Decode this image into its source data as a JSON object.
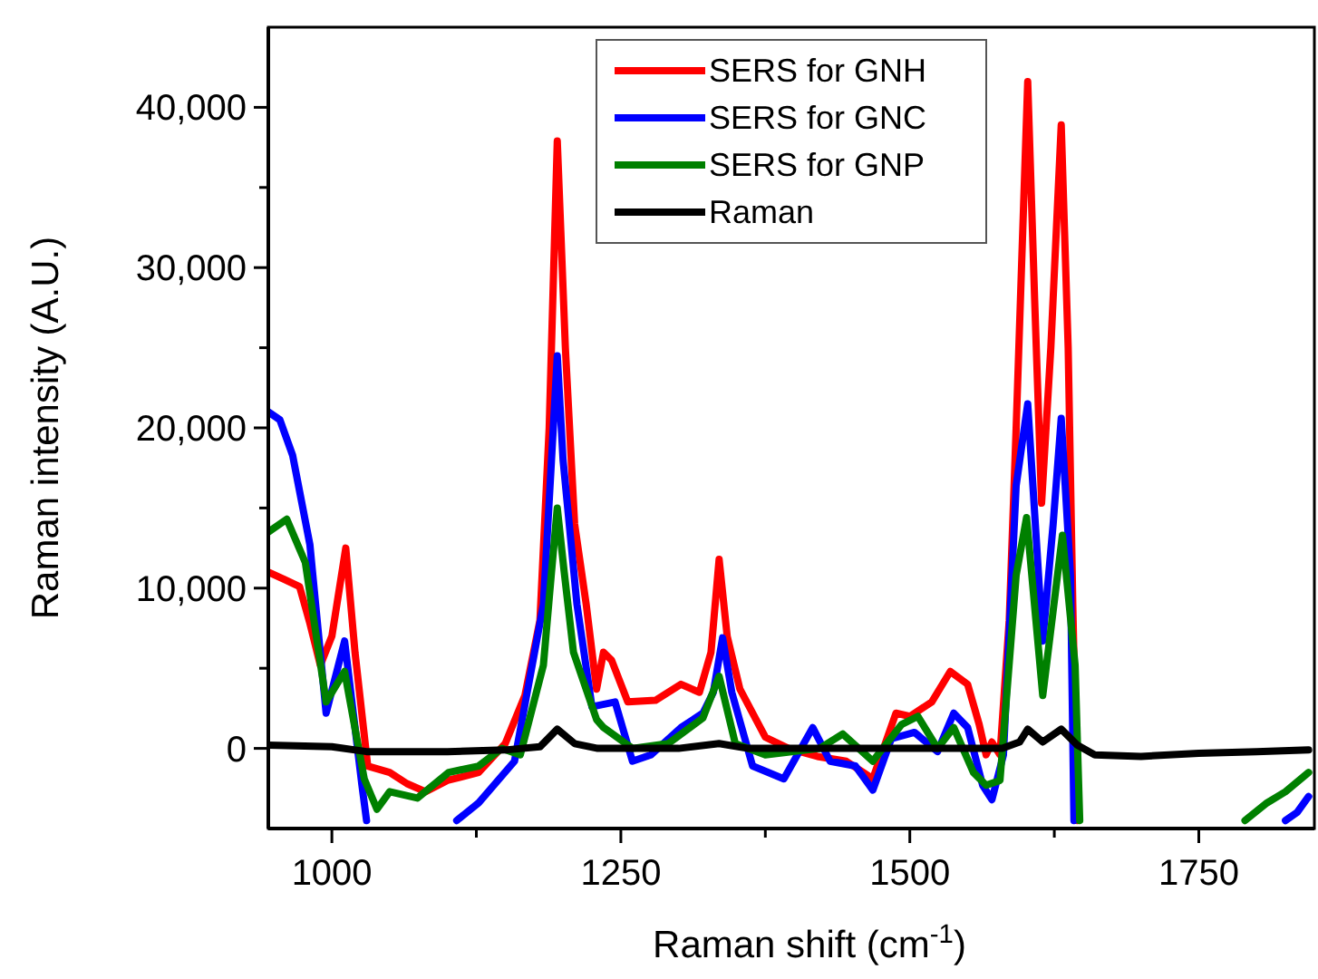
{
  "chart_data": {
    "type": "line",
    "xlabel": "Raman shift (cm$^{-1}$)",
    "ylabel": "Raman intensity (A.U.)",
    "xlim": [
      945,
      1850
    ],
    "ylim": [
      -5000,
      45000
    ],
    "xticks": [
      1000,
      {
        "value": 1125,
        "label": null
      },
      1250,
      {
        "value": 1375,
        "label": null
      },
      1500,
      {
        "value": 1625,
        "label": null
      },
      1750
    ],
    "yticks": [
      0,
      {
        "value": 5000,
        "label": null
      },
      {
        "value": 10000,
        "label": "10,000"
      },
      {
        "value": 15000,
        "label": null
      },
      {
        "value": 20000,
        "label": "20,000"
      },
      {
        "value": 25000,
        "label": null
      },
      {
        "value": 30000,
        "label": "30,000"
      },
      {
        "value": 35000,
        "label": null
      },
      {
        "value": 40000,
        "label": "40,000"
      }
    ],
    "grid": false,
    "legend": "top",
    "line_style": "solid",
    "marker": "none",
    "series": [
      {
        "name": "SERS for GNH",
        "color": "#ff0000",
        "x": [
          945,
          960,
          972,
          981,
          990,
          1000,
          1012,
          1020,
          1031,
          1050,
          1065,
          1081,
          1100,
          1127,
          1150,
          1167,
          1180,
          1188,
          1195,
          1202,
          1210,
          1220,
          1229,
          1235,
          1242,
          1256,
          1280,
          1302,
          1318,
          1328,
          1335,
          1342,
          1353,
          1375,
          1395,
          1420,
          1445,
          1468,
          1488,
          1500,
          1519,
          1535,
          1550,
          1560,
          1566,
          1571,
          1578,
          1586,
          1592,
          1602,
          1608,
          1614,
          1622,
          1631,
          1637,
          1641,
          1645
        ],
        "values": [
          11000,
          10500,
          10100,
          7800,
          5200,
          7000,
          12500,
          6000,
          -1100,
          -1500,
          -2200,
          -2700,
          -2000,
          -1500,
          300,
          3300,
          8000,
          20000,
          37900,
          25000,
          14000,
          9000,
          3700,
          6000,
          5500,
          2900,
          3000,
          4000,
          3500,
          6000,
          11800,
          7000,
          3700,
          700,
          0,
          -500,
          -800,
          -1900,
          2200,
          2000,
          2900,
          4800,
          4000,
          1500,
          -400,
          400,
          -400,
          8000,
          20000,
          41600,
          28000,
          15300,
          25000,
          38900,
          25000,
          9000,
          -4500
        ]
      },
      {
        "name": "SERS for GNC",
        "color": "#0000ff",
        "x": [
          945,
          955,
          966,
          981,
          995,
          1011,
          1026,
          1030,
          1065,
          1108,
          1127,
          1158,
          1183,
          1190,
          1195,
          1200,
          1212,
          1225,
          1245,
          1260,
          1276,
          1302,
          1321,
          1330,
          1338,
          1346,
          1353,
          1364,
          1391,
          1416,
          1431,
          1453,
          1468,
          1484,
          1504,
          1524,
          1538,
          1550,
          1563,
          1571,
          1581,
          1592,
          1602,
          1615,
          1624,
          1631,
          1639,
          1642,
          1730,
          1825,
          1835,
          1845
        ],
        "values": [
          21000,
          20500,
          18300,
          12700,
          2200,
          6700,
          -2300,
          -4500,
          null,
          -4500,
          -3400,
          -800,
          9000,
          18000,
          24500,
          18000,
          9000,
          2600,
          2900,
          -800,
          -400,
          1300,
          2200,
          3500,
          6900,
          3500,
          1700,
          -1100,
          -1900,
          1300,
          -800,
          -1100,
          -2600,
          600,
          1000,
          -200,
          2200,
          1300,
          -2300,
          -3200,
          -400,
          16400,
          21500,
          6700,
          14000,
          20600,
          10800,
          -4500,
          null,
          -4500,
          -4000,
          -3000
        ]
      },
      {
        "name": "SERS for GNP",
        "color": "#008000",
        "x": [
          945,
          961,
          977,
          995,
          1011,
          1028,
          1039,
          1050,
          1074,
          1101,
          1127,
          1147,
          1163,
          1183,
          1190,
          1195,
          1201,
          1209,
          1229,
          1235,
          1260,
          1291,
          1321,
          1335,
          1349,
          1375,
          1422,
          1442,
          1468,
          1493,
          1507,
          1524,
          1538,
          1555,
          1566,
          1578,
          1592,
          1601,
          1615,
          1632,
          1643,
          1647,
          1720,
          1790,
          1809,
          1825,
          1845
        ],
        "values": [
          13500,
          14300,
          11600,
          2900,
          4800,
          -1900,
          -3800,
          -2700,
          -3100,
          -1500,
          -1100,
          0,
          -400,
          5200,
          11000,
          15000,
          11000,
          6000,
          1800,
          1300,
          0,
          300,
          1900,
          4500,
          300,
          -400,
          0,
          900,
          -800,
          1500,
          2000,
          0,
          1300,
          -1500,
          -2300,
          -2000,
          10800,
          14400,
          3300,
          13300,
          5200,
          -4500,
          null,
          -4500,
          -3400,
          -2700,
          -1500
        ]
      },
      {
        "name": "Raman",
        "color": "#000000",
        "x": [
          945,
          1000,
          1030,
          1100,
          1150,
          1180,
          1195,
          1210,
          1230,
          1300,
          1335,
          1360,
          1450,
          1580,
          1595,
          1602,
          1615,
          1631,
          1645,
          1660,
          1700,
          1750,
          1800,
          1845
        ],
        "values": [
          200,
          100,
          -200,
          -200,
          -100,
          100,
          1200,
          300,
          0,
          0,
          300,
          0,
          0,
          0,
          400,
          1200,
          400,
          1200,
          200,
          -400,
          -500,
          -300,
          -200,
          -100
        ]
      }
    ]
  }
}
